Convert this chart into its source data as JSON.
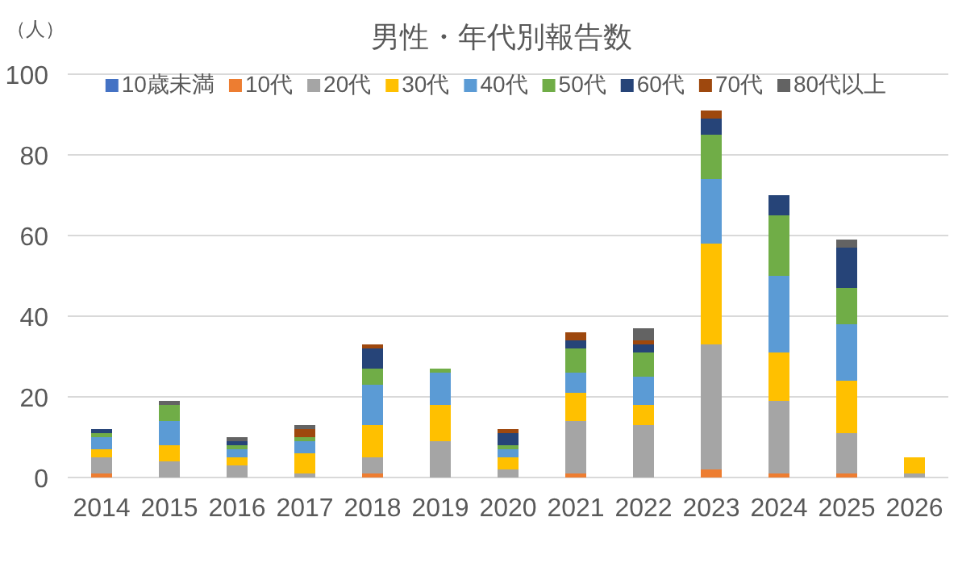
{
  "chart_data": {
    "type": "bar",
    "stacked": true,
    "title": "男性・年代別報告数",
    "ylabel": "（人）",
    "categories": [
      "2014",
      "2015",
      "2016",
      "2017",
      "2018",
      "2019",
      "2020",
      "2021",
      "2022",
      "2023",
      "2024",
      "2025",
      "2026"
    ],
    "ylim": [
      0,
      100
    ],
    "yticks": [
      0,
      20,
      40,
      60,
      80,
      100
    ],
    "grid": "y",
    "legend": "top",
    "series": [
      {
        "name": "10歳未満",
        "color": "#4472c4",
        "values": [
          0,
          0,
          0,
          0,
          0,
          0,
          0,
          0,
          0,
          0,
          0,
          0,
          0
        ]
      },
      {
        "name": "10代",
        "color": "#ed7d31",
        "values": [
          1,
          0,
          0,
          0,
          1,
          0,
          0,
          1,
          0,
          2,
          1,
          1,
          0
        ]
      },
      {
        "name": "20代",
        "color": "#a5a5a5",
        "values": [
          4,
          4,
          3,
          1,
          4,
          9,
          2,
          13,
          13,
          31,
          18,
          10,
          1
        ]
      },
      {
        "name": "30代",
        "color": "#ffc000",
        "values": [
          2,
          4,
          2,
          5,
          8,
          9,
          3,
          7,
          5,
          25,
          12,
          13,
          4
        ]
      },
      {
        "name": "40代",
        "color": "#5b9bd5",
        "values": [
          3,
          6,
          2,
          3,
          10,
          8,
          2,
          5,
          7,
          16,
          19,
          14,
          0
        ]
      },
      {
        "name": "50代",
        "color": "#70ad47",
        "values": [
          1,
          4,
          1,
          1,
          4,
          1,
          1,
          6,
          6,
          11,
          15,
          9,
          0
        ]
      },
      {
        "name": "60代",
        "color": "#264478",
        "values": [
          1,
          0,
          1,
          0,
          5,
          0,
          3,
          2,
          2,
          4,
          5,
          10,
          0
        ]
      },
      {
        "name": "70代",
        "color": "#9e480e",
        "values": [
          0,
          0,
          0,
          2,
          1,
          0,
          1,
          2,
          1,
          2,
          0,
          0,
          0
        ]
      },
      {
        "name": "80代以上",
        "color": "#636363",
        "values": [
          0,
          1,
          1,
          1,
          0,
          0,
          0,
          0,
          3,
          0,
          0,
          2,
          0
        ]
      }
    ]
  }
}
